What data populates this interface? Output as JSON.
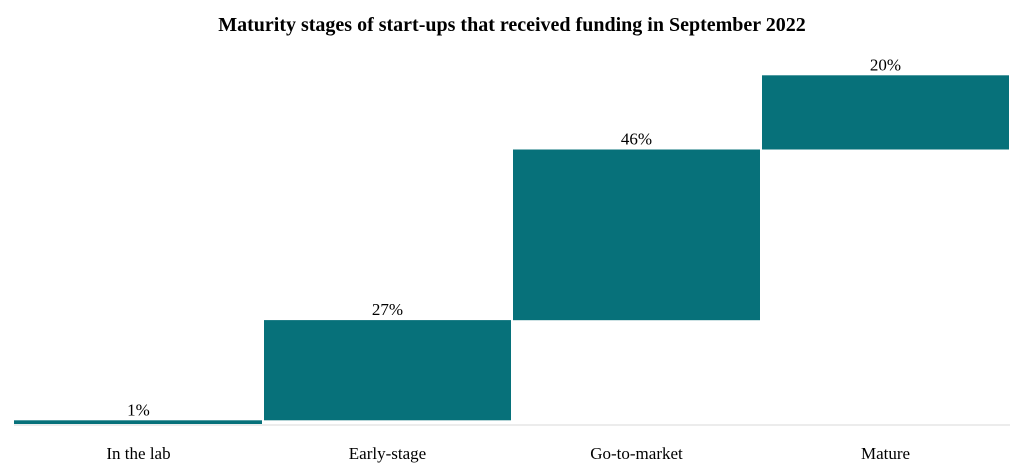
{
  "chart_data": {
    "type": "bar",
    "subtype": "waterfall",
    "title": "Maturity stages of start-ups that received funding in September 2022",
    "xlabel": "",
    "ylabel": "",
    "categories": [
      "In the lab",
      "Early-stage",
      "Go-to-market",
      "Mature"
    ],
    "values": [
      1,
      27,
      46,
      20
    ],
    "value_labels": [
      "1%",
      "27%",
      "46%",
      "20%"
    ],
    "unit": "%",
    "ylim": [
      0,
      100
    ],
    "grid": false,
    "legend": "none",
    "colors": {
      "bar": "#07717a",
      "axis": "#d9d9d9"
    }
  }
}
